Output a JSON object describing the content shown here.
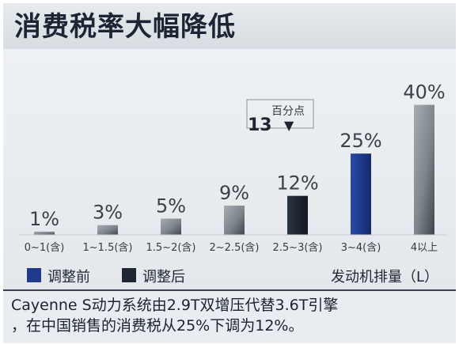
{
  "title": "消费税率大幅降低",
  "chart_data": {
    "type": "bar",
    "categories": [
      "0~1(含)",
      "1~1.5(含)",
      "1.5~2(含)",
      "2~2.5(含)",
      "2.5~3(含)",
      "3~4(含)",
      "4以上"
    ],
    "values": [
      1,
      3,
      5,
      9,
      12,
      25,
      40
    ],
    "value_labels": [
      "1%",
      "3%",
      "5%",
      "9%",
      "12%",
      "25%",
      "40%"
    ],
    "bar_kind": [
      "gray",
      "gray",
      "gray",
      "gray",
      "after",
      "before",
      "gray"
    ],
    "xlabel": "发动机排量（L）",
    "ylim": [
      0,
      45
    ],
    "grid": false,
    "legend": [
      {
        "name": "调整前",
        "color": "#1f3a8a"
      },
      {
        "name": "调整后",
        "color": "#1e2633"
      }
    ],
    "legend_position": "bottom-left",
    "annotation": {
      "value": "13",
      "unit": "百分点",
      "arrow": "▼"
    }
  },
  "caption": {
    "line1": "Cayenne S动力系统由2.9T双增压代替3.6T引擎",
    "line2": "，在中国销售的消费税从25%下调为12%。"
  },
  "colors": {
    "before": "#1f3a8a",
    "after": "#1e2633",
    "gray_light": "#9aa0a6",
    "gray_dark": "#4d545c",
    "title_text": "#1c2533"
  }
}
